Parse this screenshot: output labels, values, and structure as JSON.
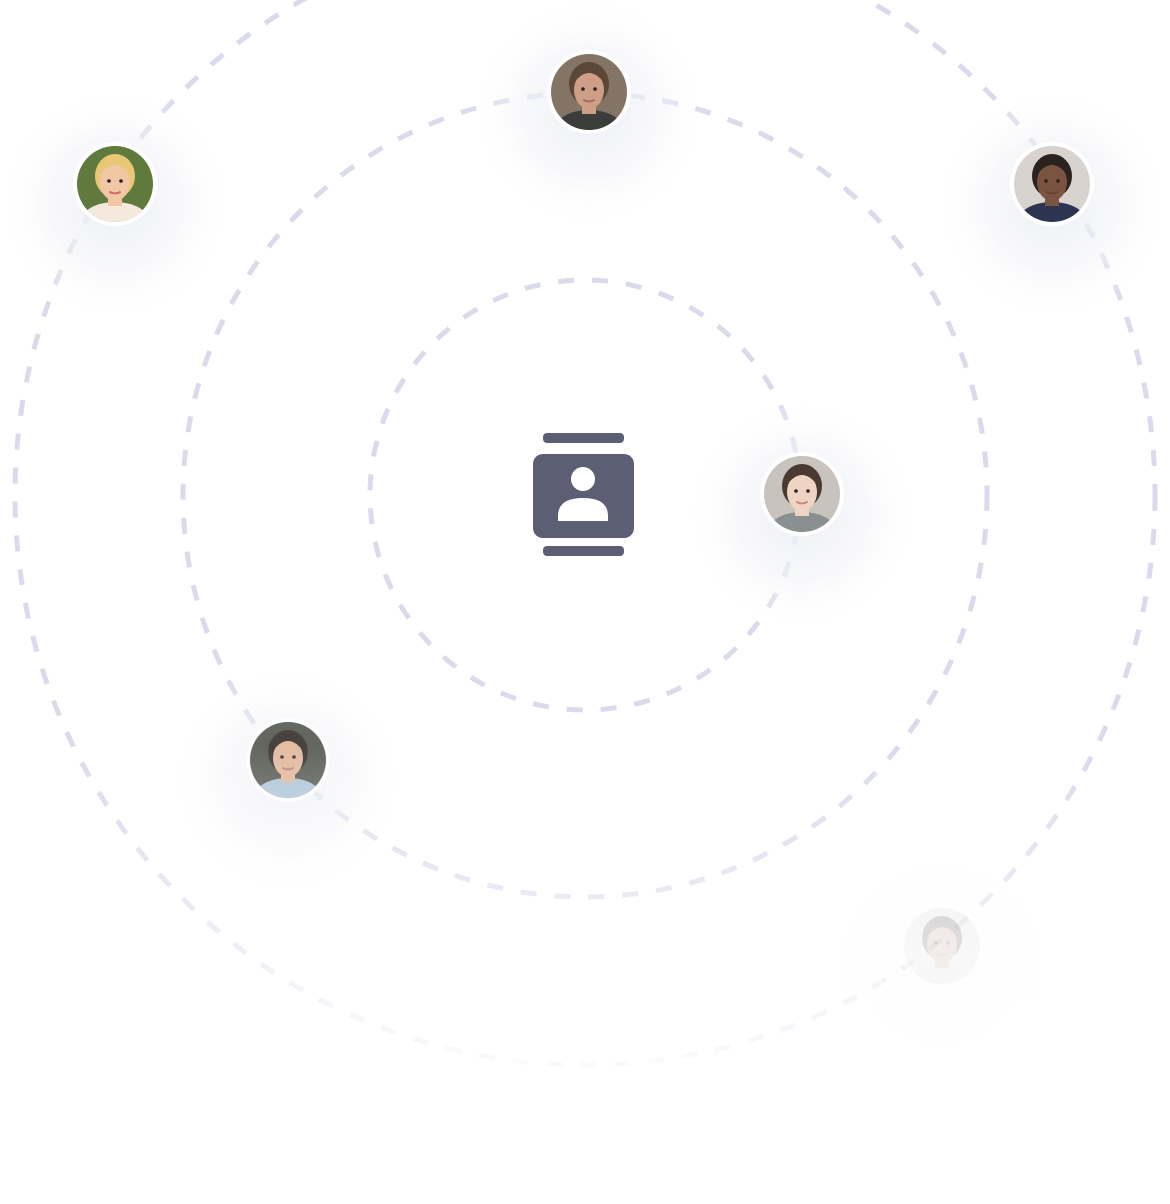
{
  "colors": {
    "background": "#ffffff",
    "orbit_ring": "#d9dbec",
    "hub_icon": "#5c5e73",
    "hub_icon_cutout": "#ffffff",
    "avatar_border": "#ffffff",
    "avatar_glow": "#eceef4"
  },
  "hub": {
    "icon": "contact-book-icon"
  },
  "orbits": [
    {
      "name": "inner-orbit"
    },
    {
      "name": "middle-orbit"
    },
    {
      "name": "outer-orbit"
    }
  ],
  "contacts": [
    {
      "name": "contact-avatar-blonde-woman",
      "icon": "person-photo",
      "palette": {
        "bg": "#5f7a3c",
        "skin": "#f1c7a6",
        "hair": "#e8c874",
        "shirt": "#f3e9dd",
        "lips": "#cf6a6a"
      },
      "opacity": 1
    },
    {
      "name": "contact-avatar-man-dark-shirt",
      "icon": "person-photo",
      "palette": {
        "bg": "#847466",
        "skin": "#cf9e86",
        "hair": "#5a4736",
        "shirt": "#3b3d3a",
        "lips": "#a86a5e"
      },
      "opacity": 1
    },
    {
      "name": "contact-avatar-man-suit",
      "icon": "person-photo",
      "palette": {
        "bg": "#d9d3cf",
        "skin": "#7a5440",
        "hair": "#2b2220",
        "shirt": "#2c3452",
        "lips": "#6a4034"
      },
      "opacity": 1
    },
    {
      "name": "contact-avatar-woman-center",
      "icon": "person-photo",
      "palette": {
        "bg": "#c9c3bd",
        "skin": "#efd3c3",
        "hair": "#4b3a32",
        "shirt": "#8a8f90",
        "lips": "#c88a82"
      },
      "opacity": 1
    },
    {
      "name": "contact-avatar-young-man",
      "icon": "person-photo",
      "palette": {
        "bg": "#4b4f46",
        "skin": "#e2b494",
        "hair": "#2a2320",
        "shirt": "#a9c1d6",
        "lips": "#b57a6c"
      },
      "opacity": 0.85
    },
    {
      "name": "contact-avatar-woman-faded",
      "icon": "person-photo",
      "palette": {
        "bg": "#d7d6d4",
        "skin": "#b98a73",
        "hair": "#3a2d28",
        "shirt": "#cfcac6",
        "lips": "#8d5a50"
      },
      "opacity": 0.35
    }
  ]
}
